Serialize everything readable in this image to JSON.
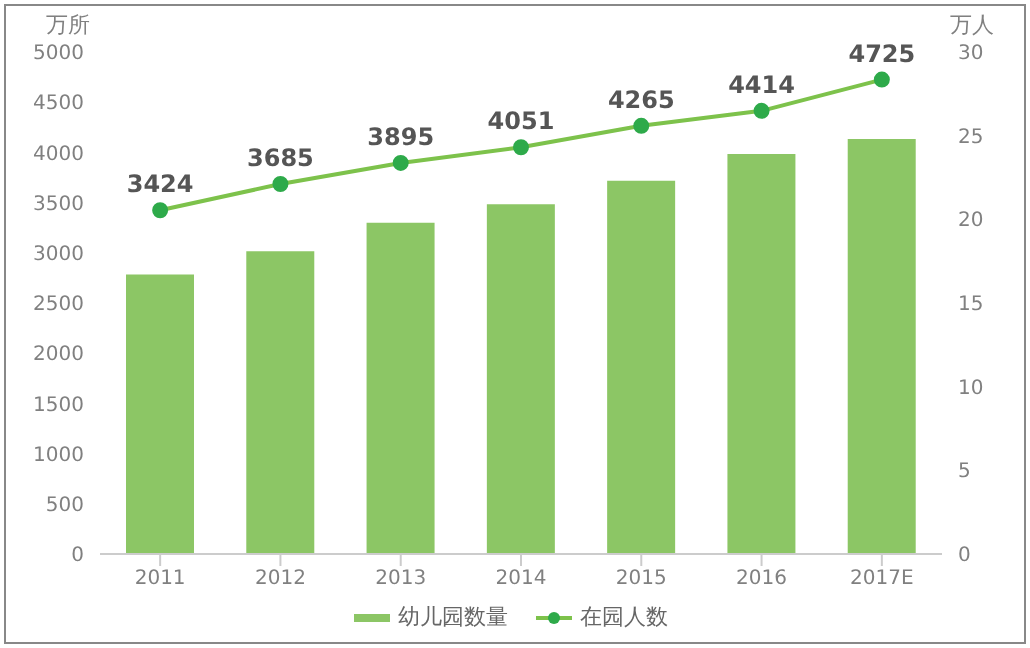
{
  "chart_data": {
    "type": "bar",
    "categories": [
      "2011",
      "2012",
      "2013",
      "2014",
      "2015",
      "2016",
      "2017E"
    ],
    "ylabel": "万所",
    "y2label": "万人",
    "series": [
      {
        "name": "幼儿园数量",
        "axis": "y2",
        "color": "#8cc665",
        "values": [
          16.7,
          18.1,
          19.8,
          20.9,
          22.3,
          23.9,
          24.8
        ]
      },
      {
        "name": "在园人数",
        "type": "line",
        "axis": "y",
        "color": "#7dc24b",
        "marker": "circle",
        "data_labels": true,
        "values": [
          3424,
          3685,
          3895,
          4051,
          4265,
          4414,
          4725
        ]
      }
    ],
    "ylim": [
      0,
      5000
    ],
    "yticks": [
      0,
      500,
      1000,
      1500,
      2000,
      2500,
      3000,
      3500,
      4000,
      4500,
      5000
    ],
    "y2lim": [
      0,
      30
    ],
    "y2ticks": [
      0,
      5,
      10,
      15,
      20,
      25,
      30
    ],
    "legend": "bottom"
  }
}
